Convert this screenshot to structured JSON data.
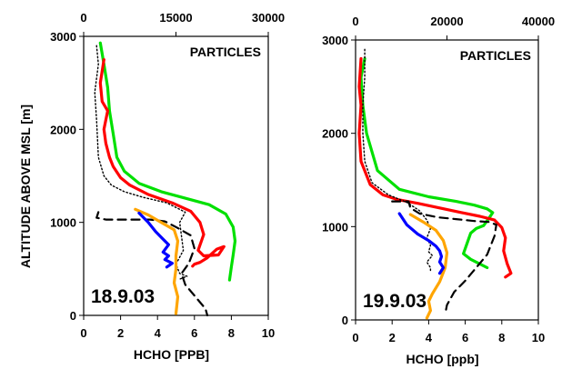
{
  "y_axis_label": "ALTITUDE ABOVE MSL [m]",
  "chart_data": [
    {
      "type": "line",
      "date_label": "18.9.03",
      "tag": "PARTICLES",
      "xlabel": "HCHO [PPB]",
      "ylabel": "ALTITUDE ABOVE MSL [m]",
      "xlim": [
        0,
        10
      ],
      "ylim": [
        0,
        3000
      ],
      "x_ticks": [
        "0",
        "2",
        "4",
        "6",
        "8",
        "10"
      ],
      "y_ticks": [
        "0",
        "1000",
        "2000",
        "3000"
      ],
      "top_axis": {
        "lim": [
          0,
          30000
        ],
        "ticks": [
          "0",
          "15000",
          "30000"
        ]
      },
      "grid": false,
      "series": [
        {
          "color": "#00e000",
          "dash": "solid",
          "x": [
            0.9,
            1.1,
            1.3,
            1.4,
            1.6,
            1.8,
            2.2,
            3.0,
            4.2,
            5.5,
            6.8,
            7.7,
            8.1,
            8.2,
            8.1,
            8.0,
            7.9
          ],
          "y": [
            2930,
            2700,
            2450,
            2200,
            1950,
            1700,
            1550,
            1420,
            1330,
            1260,
            1190,
            1090,
            950,
            800,
            650,
            520,
            380
          ]
        },
        {
          "color": "#ff0000",
          "dash": "solid",
          "x": [
            1.1,
            0.9,
            1.0,
            1.3,
            1.1,
            1.2,
            1.4,
            1.6,
            2.0,
            2.5,
            3.5,
            4.8,
            5.8,
            6.3,
            6.5,
            6.2,
            6.5,
            7.3,
            7.6,
            7.2,
            6.7,
            6.3,
            6.0,
            5.9
          ],
          "y": [
            2750,
            2500,
            2300,
            2200,
            2000,
            1850,
            1700,
            1600,
            1480,
            1400,
            1300,
            1210,
            1120,
            1000,
            870,
            700,
            640,
            650,
            740,
            710,
            620,
            570,
            550,
            530
          ]
        },
        {
          "color": "#000000",
          "dash": "dot",
          "x": [
            0.7,
            0.8,
            0.6,
            0.7,
            0.8,
            1.1,
            1.5,
            2.2,
            3.2,
            4.5,
            5.5,
            5.2,
            5.3,
            5.4,
            5.0,
            5.2,
            5.6,
            5.2
          ],
          "y": [
            2900,
            2700,
            2400,
            2100,
            1700,
            1500,
            1400,
            1330,
            1270,
            1210,
            1110,
            1000,
            850,
            700,
            550,
            450,
            420,
            390
          ]
        },
        {
          "color": "#000000",
          "dash": "dash",
          "x": [
            0.8,
            0.7,
            1.2,
            2.6,
            3.6,
            4.4,
            5.0,
            5.8,
            6.0,
            5.7,
            5.3,
            5.5,
            6.1,
            6.6,
            6.7
          ],
          "y": [
            1110,
            1050,
            1030,
            1030,
            1030,
            1010,
            950,
            860,
            720,
            560,
            450,
            330,
            190,
            70,
            0
          ]
        },
        {
          "color": "#ffa500",
          "dash": "solid",
          "x": [
            2.8,
            3.5,
            4.2,
            4.9,
            5.1,
            5.0,
            5.0,
            4.9,
            5.1,
            5.0
          ],
          "y": [
            1140,
            1080,
            1000,
            920,
            800,
            640,
            500,
            350,
            200,
            20
          ]
        },
        {
          "color": "#0000ff",
          "dash": "solid",
          "x": [
            3.0,
            3.5,
            3.9,
            4.3,
            4.6,
            4.3,
            4.6,
            4.4,
            4.8,
            4.5
          ],
          "y": [
            1100,
            1000,
            900,
            820,
            760,
            680,
            640,
            600,
            560,
            520
          ]
        }
      ]
    },
    {
      "type": "line",
      "date_label": "19.9.03",
      "tag": "PARTICLES",
      "xlabel": "HCHO [ppb]",
      "ylabel": "",
      "xlim": [
        0,
        10
      ],
      "ylim": [
        0,
        3000
      ],
      "x_ticks": [
        "0",
        "2",
        "4",
        "6",
        "8",
        "10"
      ],
      "y_ticks": [
        "0",
        "1000",
        "2000",
        "3000"
      ],
      "top_axis": {
        "lim": [
          0,
          40000
        ],
        "ticks": [
          "0",
          "20000",
          "40000"
        ]
      },
      "grid": false,
      "series": [
        {
          "color": "#00e000",
          "dash": "solid",
          "x": [
            0.5,
            0.3,
            0.4,
            0.6,
            1.2,
            2.4,
            4.0,
            5.5,
            6.5,
            7.2,
            7.5,
            7.3,
            7.0,
            6.6,
            6.3,
            6.1,
            5.9,
            6.3,
            6.8,
            7.2
          ],
          "y": [
            2800,
            2600,
            2300,
            2000,
            1600,
            1400,
            1320,
            1270,
            1230,
            1190,
            1150,
            1090,
            1010,
            980,
            930,
            820,
            710,
            650,
            600,
            560
          ]
        },
        {
          "color": "#ff0000",
          "dash": "solid",
          "x": [
            0.3,
            0.2,
            0.3,
            0.2,
            0.3,
            0.8,
            1.5,
            2.3,
            3.4,
            4.6,
            5.8,
            6.8,
            7.6,
            8.0,
            8.2,
            8.1,
            8.3,
            8.5,
            8.2
          ],
          "y": [
            2800,
            2500,
            2300,
            2000,
            1700,
            1450,
            1340,
            1290,
            1250,
            1200,
            1150,
            1110,
            1070,
            990,
            880,
            740,
            600,
            500,
            460
          ]
        },
        {
          "color": "#000000",
          "dash": "dot",
          "x": [
            0.5,
            0.5,
            0.4,
            0.4,
            0.5,
            0.9,
            1.8,
            2.8,
            3.5,
            3.9,
            4.1,
            3.9,
            4.1,
            4.0,
            4.2,
            3.9,
            4.1,
            4.1
          ],
          "y": [
            2900,
            2600,
            2300,
            2000,
            1700,
            1470,
            1340,
            1260,
            1170,
            1070,
            980,
            880,
            800,
            730,
            690,
            620,
            560,
            520
          ]
        },
        {
          "color": "#000000",
          "dash": "dash",
          "x": [
            2.0,
            2.9,
            3.0,
            3.5,
            4.5,
            5.5,
            6.5,
            7.3,
            7.7,
            7.6,
            7.2,
            6.6,
            6.0,
            5.4,
            5.0,
            4.9
          ],
          "y": [
            1270,
            1270,
            1200,
            1140,
            1100,
            1080,
            1060,
            1050,
            1020,
            900,
            700,
            560,
            420,
            300,
            160,
            60
          ]
        },
        {
          "color": "#ffa500",
          "dash": "solid",
          "x": [
            3.0,
            3.7,
            4.4,
            4.8,
            5.0,
            4.9,
            4.6,
            4.2,
            4.0,
            4.1,
            3.9
          ],
          "y": [
            1130,
            1050,
            960,
            850,
            720,
            560,
            410,
            280,
            200,
            100,
            20
          ]
        },
        {
          "color": "#0000ff",
          "dash": "solid",
          "x": [
            2.4,
            2.8,
            3.4,
            4.0,
            4.4,
            4.6,
            4.7,
            4.6,
            4.8,
            4.6
          ],
          "y": [
            1140,
            1020,
            920,
            850,
            790,
            740,
            680,
            620,
            560,
            500
          ]
        }
      ]
    }
  ]
}
